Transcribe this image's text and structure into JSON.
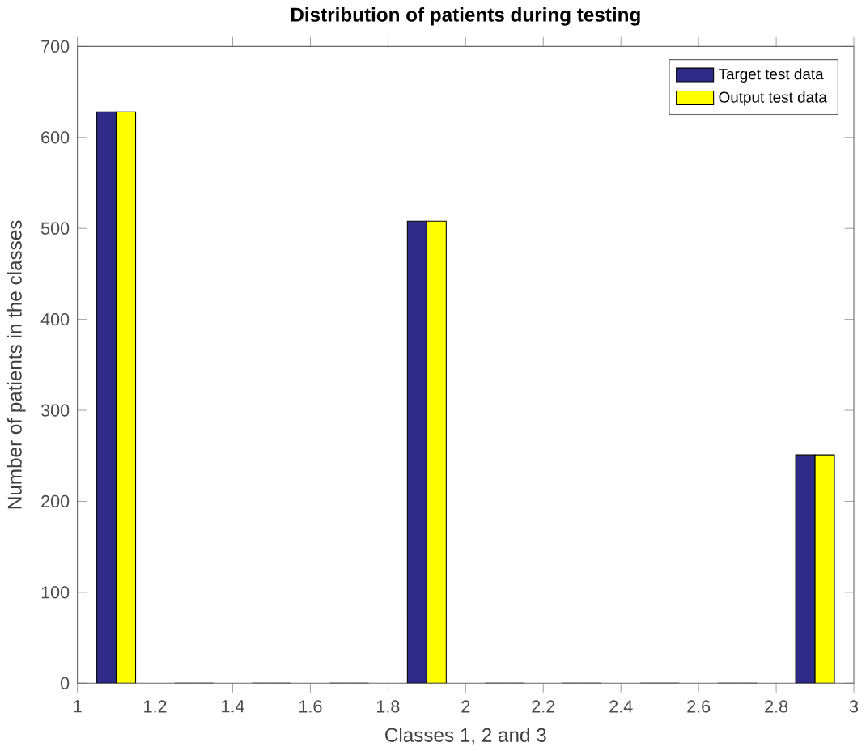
{
  "chart_data": {
    "type": "bar",
    "title": "Distribution of patients during testing",
    "xlabel": "Classes 1, 2 and 3",
    "ylabel": "Number of patients in the classes",
    "x": [
      1.1,
      1.3,
      1.5,
      1.7,
      1.9,
      2.1,
      2.3,
      2.5,
      2.7,
      2.9
    ],
    "series": [
      {
        "name": "Target test data",
        "color": "#2e2a86",
        "values": [
          628,
          0,
          0,
          0,
          508,
          0,
          0,
          0,
          0,
          251
        ]
      },
      {
        "name": "Output test data",
        "color": "#ffff00",
        "values": [
          628,
          0,
          0,
          0,
          508,
          0,
          0,
          0,
          0,
          251
        ]
      }
    ],
    "xlim": [
      1,
      3
    ],
    "xticks": [
      1,
      1.2,
      1.4,
      1.6,
      1.8,
      2,
      2.2,
      2.4,
      2.6,
      2.8,
      3
    ],
    "ylim": [
      0,
      700
    ],
    "yticks": [
      0,
      100,
      200,
      300,
      400,
      500,
      600,
      700
    ],
    "grid": false,
    "legend": "top right"
  }
}
